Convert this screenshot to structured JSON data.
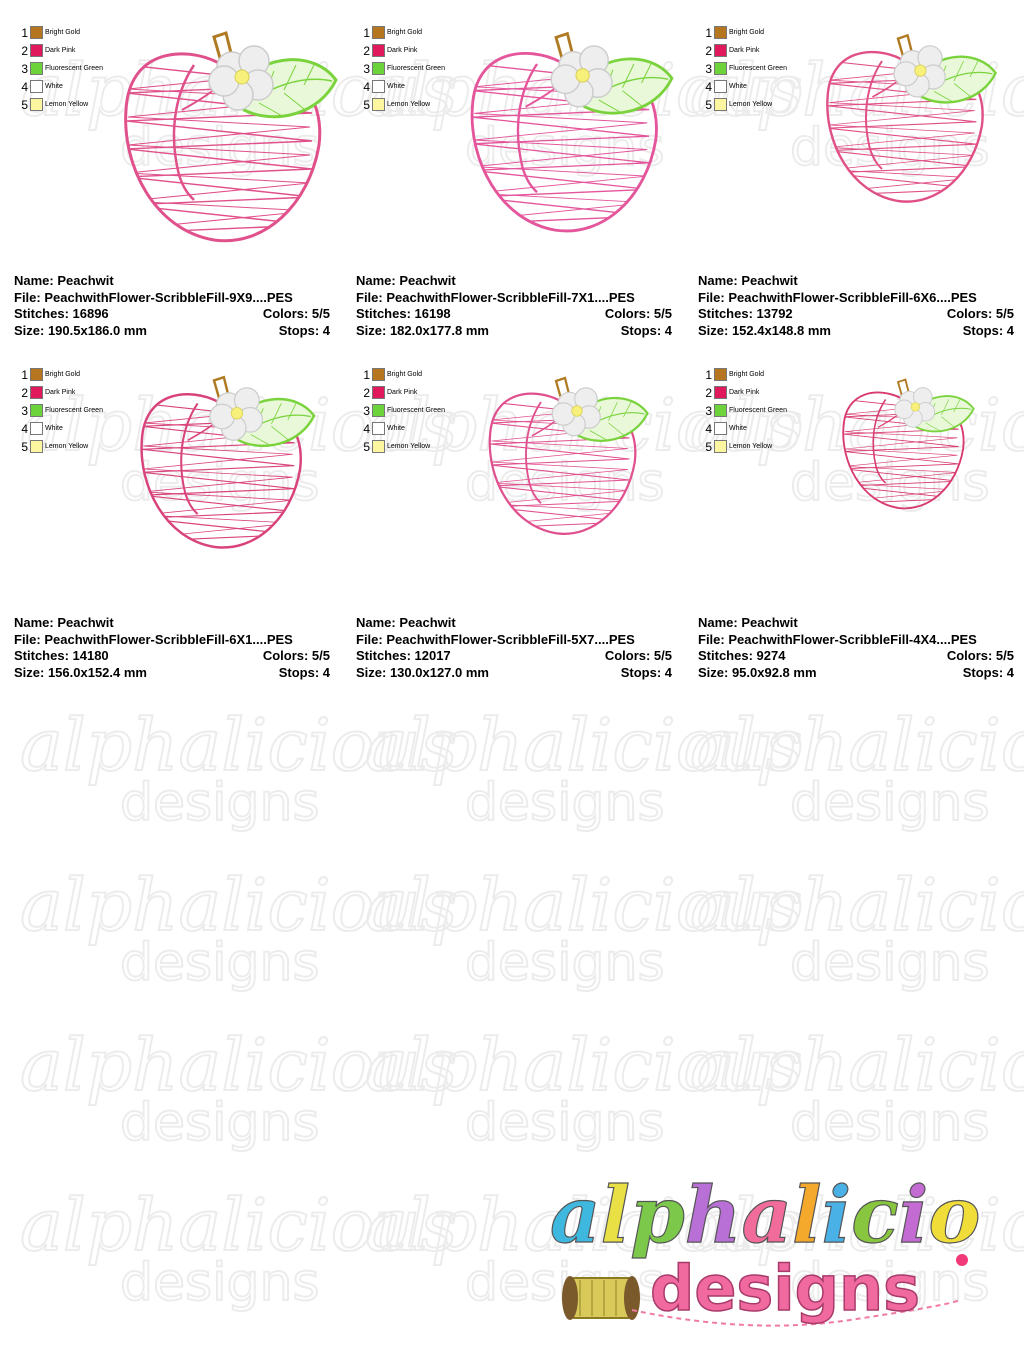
{
  "legend": [
    {
      "num": "1",
      "name": "Bright Gold",
      "color": "#b5761f"
    },
    {
      "num": "2",
      "name": "Dark Pink",
      "color": "#e0195c"
    },
    {
      "num": "3",
      "name": "Fluorescent Green",
      "color": "#6cd43a"
    },
    {
      "num": "4",
      "name": "White",
      "color": "#ffffff"
    },
    {
      "num": "5",
      "name": "Lemon Yellow",
      "color": "#fdf6a0"
    }
  ],
  "cards": [
    {
      "name": "Name: Peachwit",
      "file": "File: PeachwithFlower-ScribbleFill-9X9....PES",
      "stitches": "Stitches: 16896",
      "colors": "Colors: 5/5",
      "size": "Size: 190.5x186.0 mm",
      "stops": "Stops: 4"
    },
    {
      "name": "Name: Peachwit",
      "file": "File: PeachwithFlower-ScribbleFill-7X1....PES",
      "stitches": "Stitches: 16198",
      "colors": "Colors: 5/5",
      "size": "Size: 182.0x177.8 mm",
      "stops": "Stops: 4"
    },
    {
      "name": "Name: Peachwit",
      "file": "File: PeachwithFlower-ScribbleFill-6X6....PES",
      "stitches": "Stitches: 13792",
      "colors": "Colors: 5/5",
      "size": "Size: 152.4x148.8 mm",
      "stops": "Stops: 4"
    },
    {
      "name": "Name: Peachwit",
      "file": "File: PeachwithFlower-ScribbleFill-6X1....PES",
      "stitches": "Stitches: 14180",
      "colors": "Colors: 5/5",
      "size": "Size: 156.0x152.4 mm",
      "stops": "Stops: 4"
    },
    {
      "name": "Name: Peachwit",
      "file": "File: PeachwithFlower-ScribbleFill-5X7....PES",
      "stitches": "Stitches: 12017",
      "colors": "Colors: 5/5",
      "size": "Size: 130.0x127.0 mm",
      "stops": "Stops: 4"
    },
    {
      "name": "Name: Peachwit",
      "file": "File: PeachwithFlower-ScribbleFill-4X4....PES",
      "stitches": "Stitches: 9274",
      "colors": "Colors: 5/5",
      "size": "Size: 95.0x92.8 mm",
      "stops": "Stops: 4"
    }
  ],
  "peach_colors": {
    "outline": [
      "#e0508a",
      "#e4559b",
      "#e04f86",
      "#d9437b",
      "#e0508e",
      "#d83a6e"
    ],
    "leaf": "#7ad33c",
    "leaf_fill": "#e8f8d8",
    "stem": "#b07a22",
    "petal": "#eeeeee",
    "center": "#f7f07a"
  },
  "watermark": {
    "line1": "alphalicious",
    "line2": "designs",
    "color": "#ececec"
  },
  "logo": {
    "line1": "alphalicious",
    "line2": "designs",
    "letter_colors": [
      "#3fb8e0",
      "#e8e044",
      "#7cc84a",
      "#b86fd6",
      "#f26c9b",
      "#f4a92c",
      "#4ab1e6",
      "#88c640",
      "#c46bd3",
      "#f0dd3a",
      "#e8628f",
      "#46b6df"
    ],
    "designs_color": "#f06aa0",
    "spool_color": "#d9c95a"
  }
}
